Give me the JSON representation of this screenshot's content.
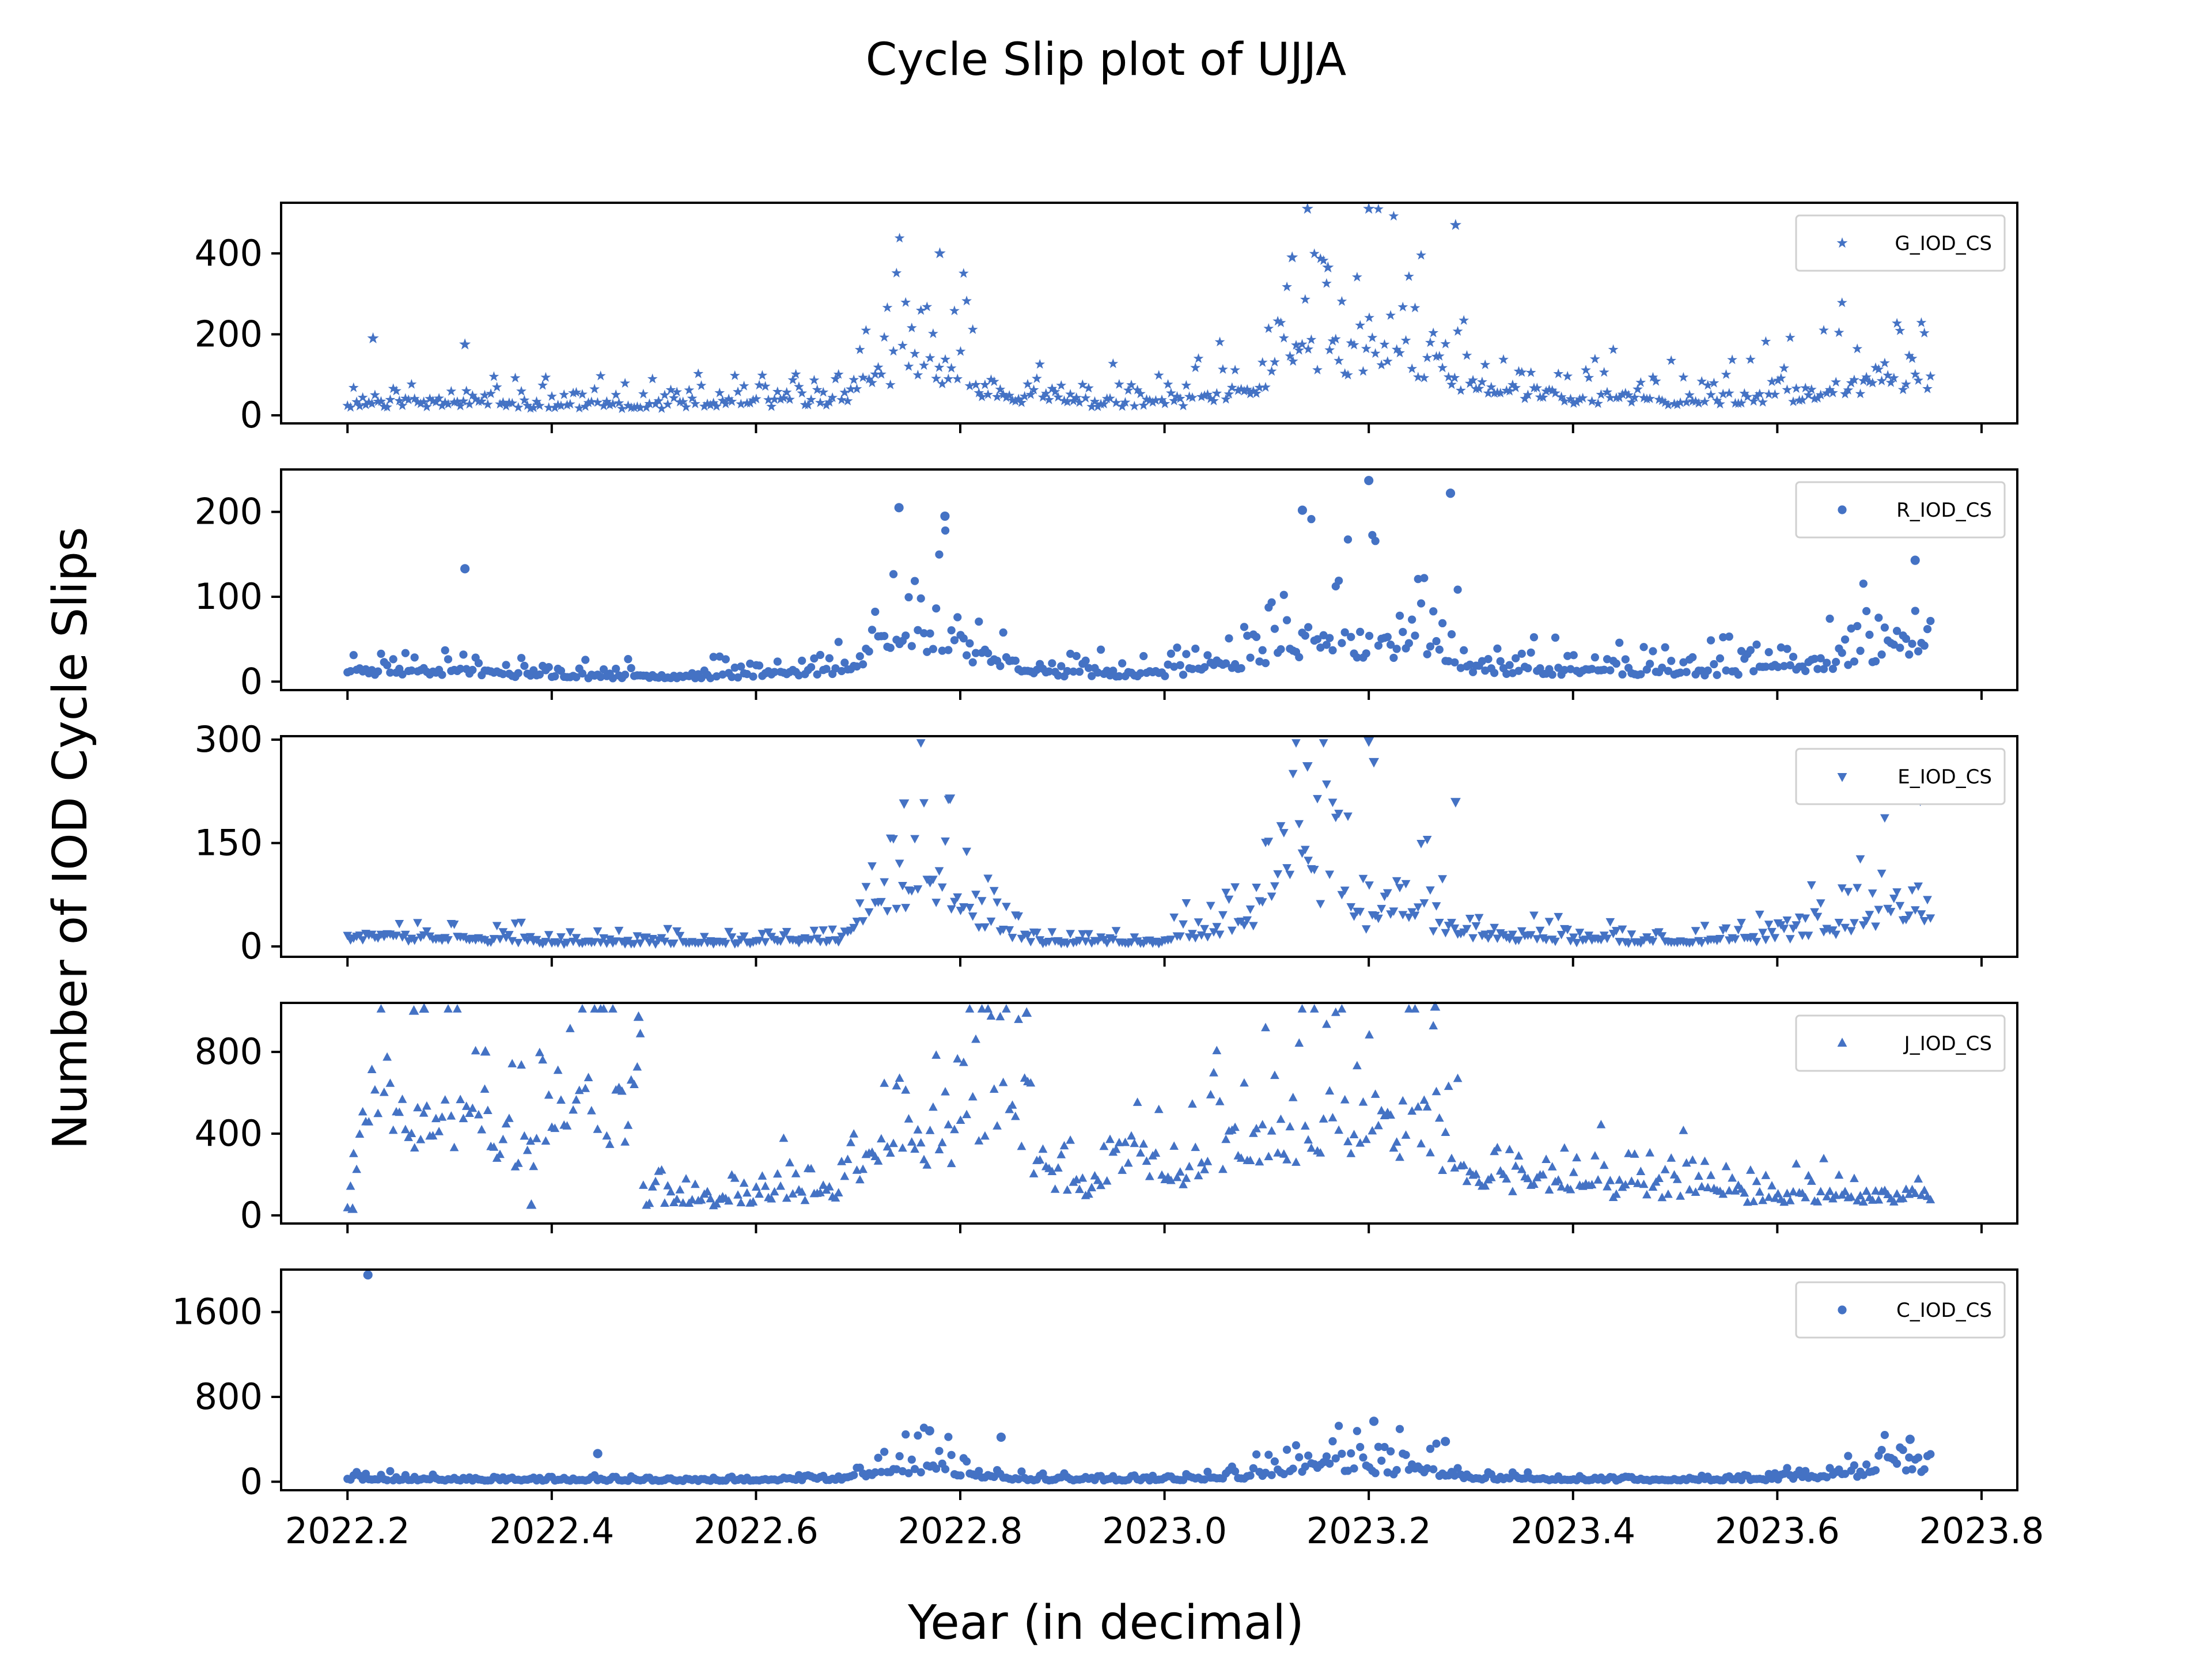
{
  "title": "Cycle Slip plot of UJJA",
  "xlabel": "Year (in decimal)",
  "ylabel": "Number of IOD Cycle Slips",
  "marker_color": "#4472C4",
  "chart_data": {
    "type": "scatter",
    "x_ticks": [
      "2022.2",
      "2022.4",
      "2022.6",
      "2022.8",
      "2023.0",
      "2023.2",
      "2023.4",
      "2023.6",
      "2023.8"
    ],
    "xlim": [
      2022.135,
      2023.835
    ],
    "x_range_of_data": [
      2022.2,
      2023.75
    ],
    "grid": false,
    "legend_position": "upper right",
    "panels": [
      {
        "series": "G_IOD_CS",
        "marker": "star",
        "ylim": [
          -20,
          525
        ],
        "y_ticks": [
          "0",
          "200",
          "400"
        ],
        "y_tick_values": [
          0,
          200,
          400
        ],
        "profile": [
          [
            2022.2,
            45
          ],
          [
            2022.3,
            50
          ],
          [
            2022.4,
            40
          ],
          [
            2022.55,
            40
          ],
          [
            2022.68,
            60
          ],
          [
            2022.72,
            170
          ],
          [
            2022.78,
            190
          ],
          [
            2022.82,
            110
          ],
          [
            2022.88,
            55
          ],
          [
            2023.0,
            45
          ],
          [
            2023.08,
            80
          ],
          [
            2023.14,
            250
          ],
          [
            2023.2,
            220
          ],
          [
            2023.26,
            200
          ],
          [
            2023.3,
            110
          ],
          [
            2023.4,
            70
          ],
          [
            2023.5,
            60
          ],
          [
            2023.6,
            70
          ],
          [
            2023.67,
            110
          ],
          [
            2023.72,
            160
          ],
          [
            2023.75,
            120
          ]
        ],
        "spread": 0.35,
        "seed": 11,
        "highlights": [
          [
            2022.78,
            400
          ],
          [
            2023.14,
            510
          ],
          [
            2023.2,
            510
          ],
          [
            2023.285,
            470
          ],
          [
            2022.225,
            190
          ],
          [
            2022.315,
            175
          ],
          [
            2023.125,
            390
          ],
          [
            2023.16,
            365
          ]
        ]
      },
      {
        "series": "R_IOD_CS",
        "marker": "circle",
        "ylim": [
          -10,
          250
        ],
        "y_ticks": [
          "0",
          "100",
          "200"
        ],
        "y_tick_values": [
          0,
          100,
          200
        ],
        "profile": [
          [
            2022.2,
            20
          ],
          [
            2022.3,
            20
          ],
          [
            2022.4,
            10
          ],
          [
            2022.55,
            10
          ],
          [
            2022.68,
            20
          ],
          [
            2022.72,
            70
          ],
          [
            2022.78,
            90
          ],
          [
            2022.82,
            50
          ],
          [
            2022.88,
            15
          ],
          [
            2023.0,
            15
          ],
          [
            2023.08,
            35
          ],
          [
            2023.14,
            80
          ],
          [
            2023.2,
            70
          ],
          [
            2023.26,
            70
          ],
          [
            2023.3,
            25
          ],
          [
            2023.4,
            20
          ],
          [
            2023.5,
            15
          ],
          [
            2023.6,
            25
          ],
          [
            2023.67,
            40
          ],
          [
            2023.72,
            70
          ],
          [
            2023.75,
            50
          ]
        ],
        "spread": 0.45,
        "seed": 23,
        "highlights": [
          [
            2022.315,
            133
          ],
          [
            2022.74,
            205
          ],
          [
            2022.785,
            195
          ],
          [
            2023.2,
            237
          ],
          [
            2023.28,
            222
          ],
          [
            2023.135,
            202
          ],
          [
            2023.735,
            143
          ]
        ]
      },
      {
        "series": "E_IOD_CS",
        "marker": "triangle-down",
        "ylim": [
          -15,
          305
        ],
        "y_ticks": [
          "0",
          "150",
          "300"
        ],
        "y_tick_values": [
          0,
          150,
          300
        ],
        "profile": [
          [
            2022.2,
            25
          ],
          [
            2022.3,
            20
          ],
          [
            2022.4,
            10
          ],
          [
            2022.55,
            10
          ],
          [
            2022.68,
            15
          ],
          [
            2022.72,
            90
          ],
          [
            2022.78,
            140
          ],
          [
            2022.82,
            50
          ],
          [
            2022.88,
            12
          ],
          [
            2023.0,
            12
          ],
          [
            2023.08,
            60
          ],
          [
            2023.14,
            180
          ],
          [
            2023.2,
            60
          ],
          [
            2023.26,
            60
          ],
          [
            2023.3,
            30
          ],
          [
            2023.4,
            15
          ],
          [
            2023.5,
            12
          ],
          [
            2023.6,
            20
          ],
          [
            2023.67,
            50
          ],
          [
            2023.72,
            100
          ],
          [
            2023.75,
            50
          ]
        ],
        "spread": 0.45,
        "seed": 37,
        "highlights": [
          [
            2023.2,
            298
          ],
          [
            2023.205,
            268
          ],
          [
            2022.79,
            215
          ],
          [
            2022.745,
            208
          ],
          [
            2023.14,
            262
          ],
          [
            2023.285,
            210
          ],
          [
            2023.74,
            212
          ],
          [
            2023.7,
            238
          ]
        ]
      },
      {
        "series": "J_IOD_CS",
        "marker": "triangle-up",
        "ylim": [
          -40,
          1040
        ],
        "y_ticks": [
          "0",
          "400",
          "800"
        ],
        "y_tick_values": [
          0,
          400,
          800
        ],
        "profile": [
          [
            2022.2,
            80
          ],
          [
            2022.22,
            900
          ],
          [
            2022.28,
            650
          ],
          [
            2022.33,
            700
          ],
          [
            2022.38,
            450
          ],
          [
            2022.42,
            780
          ],
          [
            2022.48,
            850
          ],
          [
            2022.49,
            110
          ],
          [
            2022.55,
            95
          ],
          [
            2022.62,
            150
          ],
          [
            2022.68,
            180
          ],
          [
            2022.72,
            450
          ],
          [
            2022.78,
            500
          ],
          [
            2022.84,
            800
          ],
          [
            2022.88,
            350
          ],
          [
            2022.92,
            180
          ],
          [
            2022.96,
            450
          ],
          [
            2023.02,
            350
          ],
          [
            2023.08,
            550
          ],
          [
            2023.14,
            600
          ],
          [
            2023.2,
            700
          ],
          [
            2023.26,
            650
          ],
          [
            2023.3,
            250
          ],
          [
            2023.4,
            220
          ],
          [
            2023.5,
            180
          ],
          [
            2023.6,
            130
          ],
          [
            2023.75,
            150
          ]
        ],
        "spread": 0.3,
        "seed": 53,
        "highlights": [
          [
            2022.265,
            1000
          ],
          [
            2022.275,
            1010
          ],
          [
            2023.265,
            1020
          ],
          [
            2022.335,
            800
          ],
          [
            2022.485,
            970
          ],
          [
            2022.865,
            990
          ],
          [
            2022.205,
            30
          ],
          [
            2022.38,
            50
          ]
        ]
      },
      {
        "series": "C_IOD_CS",
        "marker": "circle",
        "ylim": [
          -80,
          2000
        ],
        "y_ticks": [
          "0",
          "800",
          "1600"
        ],
        "y_tick_values": [
          0,
          800,
          1600
        ],
        "profile": [
          [
            2022.2,
            40
          ],
          [
            2022.3,
            30
          ],
          [
            2022.4,
            25
          ],
          [
            2022.55,
            20
          ],
          [
            2022.68,
            40
          ],
          [
            2022.72,
            150
          ],
          [
            2022.78,
            200
          ],
          [
            2022.82,
            80
          ],
          [
            2022.88,
            30
          ],
          [
            2023.0,
            30
          ],
          [
            2023.08,
            80
          ],
          [
            2023.14,
            250
          ],
          [
            2023.2,
            200
          ],
          [
            2023.26,
            150
          ],
          [
            2023.3,
            60
          ],
          [
            2023.4,
            30
          ],
          [
            2023.5,
            25
          ],
          [
            2023.6,
            40
          ],
          [
            2023.67,
            100
          ],
          [
            2023.72,
            200
          ],
          [
            2023.75,
            150
          ]
        ],
        "spread": 0.55,
        "seed": 71,
        "highlights": [
          [
            2022.22,
            1950
          ],
          [
            2022.445,
            265
          ],
          [
            2023.205,
            570
          ],
          [
            2022.77,
            480
          ],
          [
            2022.84,
            420
          ],
          [
            2023.73,
            400
          ],
          [
            2023.275,
            380
          ]
        ]
      }
    ]
  }
}
